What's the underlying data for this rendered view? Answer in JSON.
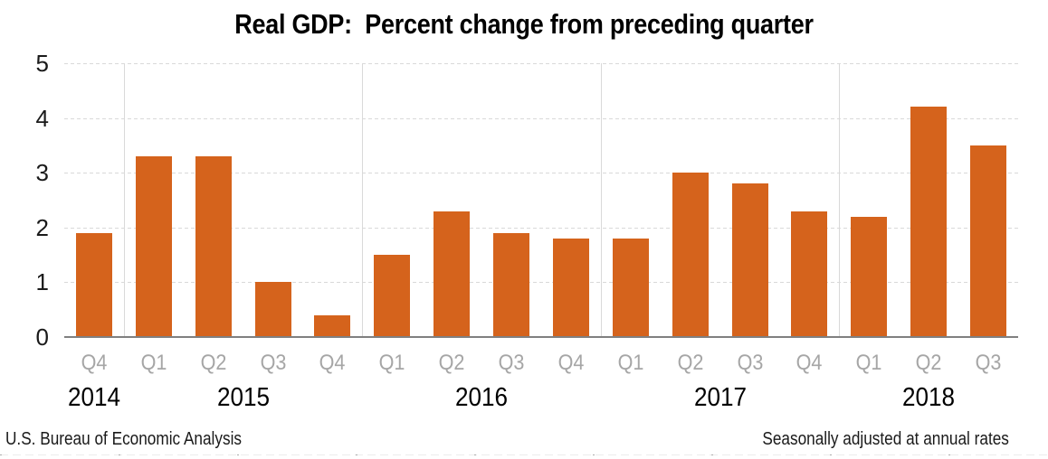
{
  "title": "Real GDP:  Percent change from preceding quarter",
  "footer": {
    "source_note": "U.S. Bureau of Economic Analysis",
    "adjustment_note": "Seasonally adjusted at annual rates"
  },
  "colors": {
    "bar": "#d5631c",
    "gridline": "#d9d9d9",
    "axis_line": "#808080",
    "quarter_label": "#a6a6a6",
    "year_label": "#000000",
    "title": "#000000"
  },
  "chart_data": {
    "type": "bar",
    "title": "Real GDP:  Percent change from preceding quarter",
    "categories": [
      "Q4",
      "Q1",
      "Q2",
      "Q3",
      "Q4",
      "Q1",
      "Q2",
      "Q3",
      "Q4",
      "Q1",
      "Q2",
      "Q3",
      "Q4",
      "Q1",
      "Q2",
      "Q3"
    ],
    "values": [
      1.9,
      3.3,
      3.3,
      1.0,
      0.4,
      1.5,
      2.3,
      1.9,
      1.8,
      1.8,
      3.0,
      2.8,
      2.3,
      2.2,
      4.2,
      3.5
    ],
    "year_groups": [
      {
        "year": "2014",
        "quarters": [
          "Q4"
        ]
      },
      {
        "year": "2015",
        "quarters": [
          "Q1",
          "Q2",
          "Q3",
          "Q4"
        ]
      },
      {
        "year": "2016",
        "quarters": [
          "Q1",
          "Q2",
          "Q3",
          "Q4"
        ]
      },
      {
        "year": "2017",
        "quarters": [
          "Q1",
          "Q2",
          "Q3",
          "Q4"
        ]
      },
      {
        "year": "2018",
        "quarters": [
          "Q1",
          "Q2",
          "Q3"
        ]
      }
    ],
    "xlabel": "",
    "ylabel": "",
    "ylim": [
      0,
      5
    ],
    "yticks": [
      0,
      1,
      2,
      3,
      4,
      5
    ],
    "grid": "horizontal dashed gridlines at integers; solid vertical separator lines between year groups",
    "legend": "none",
    "bar_color": "#d5631c"
  }
}
